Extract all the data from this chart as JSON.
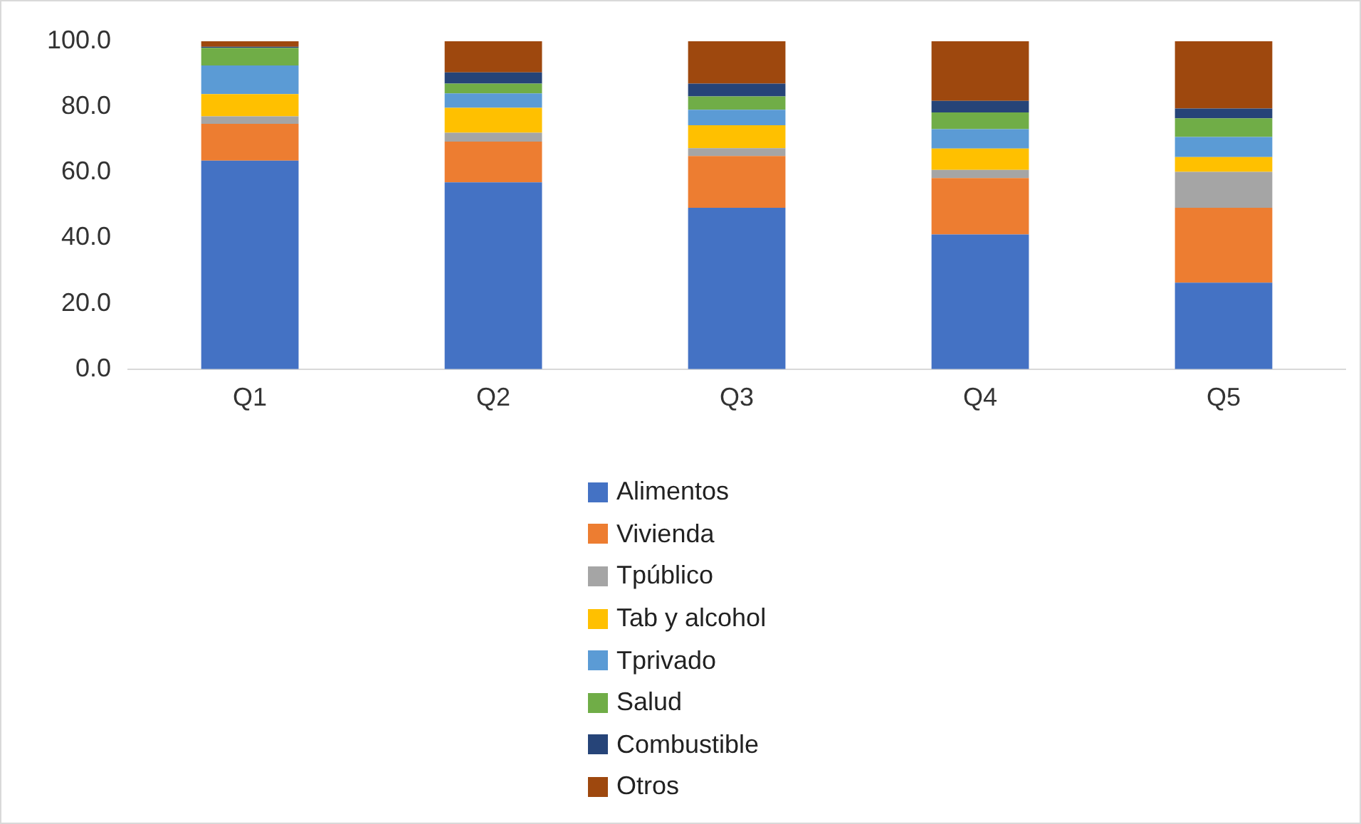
{
  "chart_data": {
    "type": "bar",
    "stacked": true,
    "categories": [
      "Q1",
      "Q2",
      "Q3",
      "Q4",
      "Q5"
    ],
    "series": [
      {
        "name": "Alimentos",
        "color": "#4472c4",
        "values": [
          63.6,
          57.0,
          49.2,
          41.1,
          26.4
        ]
      },
      {
        "name": "Vivienda",
        "color": "#ed7d31",
        "values": [
          11.2,
          12.4,
          15.8,
          17.2,
          22.8
        ]
      },
      {
        "name": "Tpúblico",
        "color": "#a5a5a5",
        "values": [
          2.3,
          2.7,
          2.4,
          2.5,
          11.0
        ]
      },
      {
        "name": "Tab y alcohol",
        "color": "#ffc000",
        "values": [
          6.8,
          7.6,
          7.0,
          6.5,
          4.5
        ]
      },
      {
        "name": "Tprivado",
        "color": "#5b9bd5",
        "values": [
          8.7,
          4.4,
          4.7,
          5.9,
          6.1
        ]
      },
      {
        "name": "Salud",
        "color": "#70ad47",
        "values": [
          5.4,
          3.0,
          4.1,
          5.1,
          5.7
        ]
      },
      {
        "name": "Combustible",
        "color": "#264478",
        "values": [
          0.3,
          3.4,
          3.9,
          3.5,
          3.0
        ]
      },
      {
        "name": "Otros",
        "color": "#9e480e",
        "values": [
          1.7,
          9.5,
          12.9,
          18.2,
          20.5
        ]
      }
    ],
    "ylim": [
      0,
      100
    ],
    "yticks": [
      {
        "value": 0,
        "label": "0.0"
      },
      {
        "value": 20,
        "label": "20.0"
      },
      {
        "value": 40,
        "label": "40.0"
      },
      {
        "value": 60,
        "label": "60.0"
      },
      {
        "value": 80,
        "label": "80.0"
      },
      {
        "value": 100,
        "label": "100.0"
      }
    ],
    "grid": false,
    "legend": "bottom"
  }
}
